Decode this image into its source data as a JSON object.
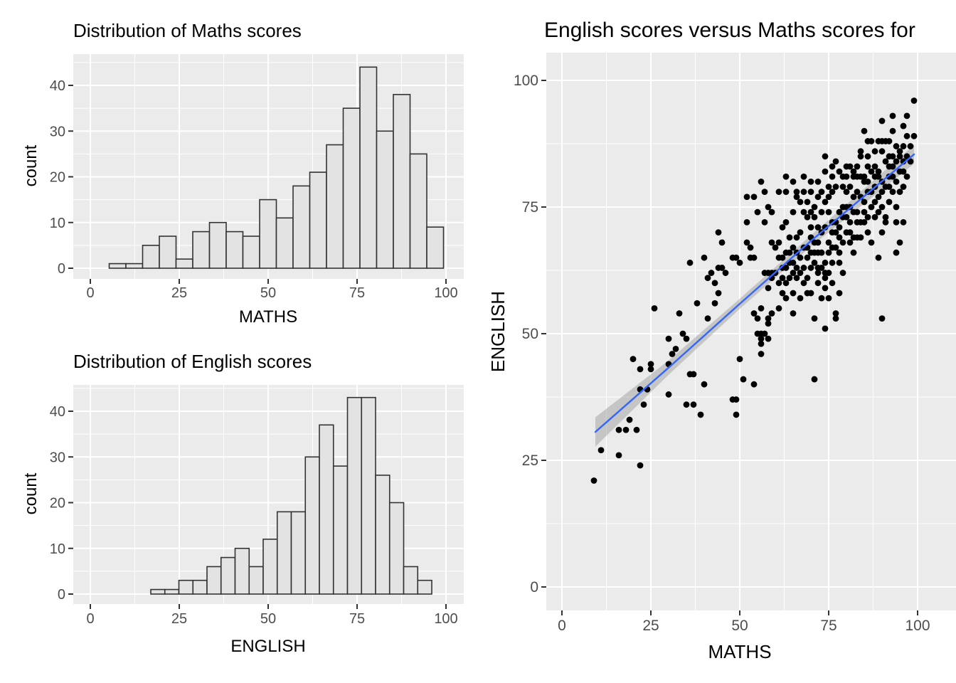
{
  "colors": {
    "panel_bg": "#EBEBEB",
    "grid": "#FFFFFF",
    "bar_fill": "#E3E3E3",
    "bar_stroke": "#333333",
    "point": "#000000",
    "smooth_line": "#3366FF",
    "smooth_band": "rgba(150,150,150,0.45)",
    "tick_label": "#4D4D4D",
    "tick_mark": "#333333",
    "title": "#000000"
  },
  "chart_data": [
    {
      "id": "maths-histogram",
      "type": "bar",
      "title": "Distribution of Maths scores",
      "xlabel": "MATHS",
      "ylabel": "count",
      "x_ticks": [
        0,
        25,
        50,
        75,
        100
      ],
      "y_ticks": [
        0,
        10,
        20,
        30,
        40
      ],
      "xlim": [
        -5,
        105
      ],
      "ylim": [
        -2,
        46
      ],
      "grid": "on",
      "bin_start": 5.3,
      "bin_width": 4.7,
      "values": [
        1,
        1,
        5,
        7,
        2,
        8,
        10,
        8,
        7,
        15,
        11,
        18,
        21,
        27,
        35,
        44,
        30,
        38,
        25,
        9
      ]
    },
    {
      "id": "english-histogram",
      "type": "bar",
      "title": "Distribution of English scores",
      "xlabel": "ENGLISH",
      "ylabel": "count",
      "x_ticks": [
        0,
        25,
        50,
        75,
        100
      ],
      "y_ticks": [
        0,
        10,
        20,
        30,
        40
      ],
      "xlim": [
        -5,
        105
      ],
      "ylim": [
        -2,
        45
      ],
      "grid": "on",
      "bin_start": 17,
      "bin_width": 3.95,
      "values": [
        1,
        1,
        3,
        3,
        6,
        8,
        10,
        6,
        12,
        18,
        18,
        30,
        37,
        28,
        43,
        43,
        26,
        20,
        6,
        3
      ]
    },
    {
      "id": "scatter",
      "type": "scatter",
      "title": "English scores versus Maths scores for",
      "xlabel": "MATHS",
      "ylabel": "ENGLISH",
      "x_ticks": [
        0,
        25,
        50,
        75,
        100
      ],
      "y_ticks": [
        0,
        25,
        50,
        75,
        100
      ],
      "xlim": [
        -4,
        110
      ],
      "ylim": [
        -5,
        105
      ],
      "grid": "on",
      "smooth": {
        "x": [
          9.4,
          30,
          50,
          70,
          99
        ],
        "y": [
          30.6,
          43.3,
          55.9,
          68.3,
          85.4
        ],
        "halfwidth": [
          2.9,
          1.4,
          1.0,
          1.1,
          1.85
        ]
      },
      "points": [
        [
          9,
          21
        ],
        [
          11,
          27
        ],
        [
          16,
          26
        ],
        [
          22,
          24
        ],
        [
          16,
          31
        ],
        [
          18,
          31
        ],
        [
          21,
          31
        ],
        [
          19,
          33
        ],
        [
          23,
          36
        ],
        [
          22,
          39
        ],
        [
          24,
          39
        ],
        [
          25,
          44
        ],
        [
          25,
          43
        ],
        [
          20,
          45
        ],
        [
          22,
          43
        ],
        [
          30,
          38
        ],
        [
          35,
          36
        ],
        [
          37,
          36
        ],
        [
          39,
          34
        ],
        [
          40,
          40
        ],
        [
          36,
          42
        ],
        [
          37,
          42
        ],
        [
          30,
          44
        ],
        [
          31,
          46
        ],
        [
          32,
          47
        ],
        [
          30,
          49
        ],
        [
          34,
          50
        ],
        [
          35,
          49
        ],
        [
          33,
          54
        ],
        [
          38,
          56
        ],
        [
          43,
          56
        ],
        [
          41,
          53
        ],
        [
          26,
          55
        ],
        [
          36,
          64
        ],
        [
          44,
          58
        ],
        [
          43,
          60
        ],
        [
          41,
          61
        ],
        [
          40,
          65
        ],
        [
          42,
          62
        ],
        [
          44,
          63
        ],
        [
          45,
          63
        ],
        [
          46,
          62
        ],
        [
          44,
          70
        ],
        [
          45,
          68
        ],
        [
          48,
          65
        ],
        [
          49,
          65
        ],
        [
          50,
          64
        ],
        [
          48,
          37
        ],
        [
          49,
          34
        ],
        [
          49,
          37
        ],
        [
          50,
          45
        ],
        [
          51,
          41
        ],
        [
          54,
          40
        ],
        [
          56,
          50
        ],
        [
          57,
          50
        ],
        [
          56,
          48
        ],
        [
          56,
          46
        ],
        [
          55,
          53
        ],
        [
          58,
          53
        ],
        [
          54,
          54
        ],
        [
          56,
          55
        ],
        [
          59,
          54
        ],
        [
          58,
          52
        ],
        [
          56,
          49
        ],
        [
          58,
          49
        ],
        [
          52,
          68
        ],
        [
          52,
          72
        ],
        [
          54,
          65
        ],
        [
          53,
          65
        ],
        [
          58,
          62
        ],
        [
          59,
          62
        ],
        [
          58,
          59
        ],
        [
          57,
          62
        ],
        [
          59,
          61
        ],
        [
          55,
          50
        ],
        [
          62,
          61
        ],
        [
          63,
          57
        ],
        [
          65,
          58
        ],
        [
          67,
          57
        ],
        [
          69,
          58
        ],
        [
          73,
          57
        ],
        [
          75,
          57
        ],
        [
          65,
          54
        ],
        [
          71,
          53
        ],
        [
          74,
          51
        ],
        [
          77,
          54
        ],
        [
          78,
          58
        ],
        [
          65,
          64
        ],
        [
          66,
          63
        ],
        [
          70,
          63
        ],
        [
          72,
          63
        ],
        [
          75,
          62
        ],
        [
          78,
          64
        ],
        [
          79,
          62
        ],
        [
          68,
          60
        ],
        [
          72,
          60
        ],
        [
          62,
          65
        ],
        [
          64,
          64
        ],
        [
          69,
          65
        ],
        [
          68,
          63
        ],
        [
          73,
          63
        ],
        [
          74,
          62
        ],
        [
          74,
          61
        ],
        [
          74,
          59
        ],
        [
          63,
          60
        ],
        [
          61,
          55
        ],
        [
          66,
          61
        ],
        [
          70,
          58
        ],
        [
          76,
          60
        ],
        [
          77,
          53
        ],
        [
          90,
          53
        ],
        [
          71,
          41
        ],
        [
          65,
          74
        ],
        [
          66,
          77
        ],
        [
          67,
          76
        ],
        [
          68,
          74
        ],
        [
          69,
          76
        ],
        [
          69,
          73
        ],
        [
          70,
          71
        ],
        [
          70,
          74
        ],
        [
          71,
          75
        ],
        [
          71,
          73
        ],
        [
          71,
          68
        ],
        [
          72,
          68
        ],
        [
          72,
          66
        ],
        [
          73,
          74
        ],
        [
          74,
          71
        ],
        [
          74,
          76
        ],
        [
          75,
          77
        ],
        [
          75,
          74
        ],
        [
          76,
          72
        ],
        [
          76,
          70
        ],
        [
          77,
          67
        ],
        [
          78,
          69
        ],
        [
          78,
          71
        ],
        [
          79,
          73
        ],
        [
          79,
          75
        ],
        [
          60,
          67
        ],
        [
          61,
          65
        ],
        [
          62,
          71
        ],
        [
          63,
          72
        ],
        [
          59,
          74
        ],
        [
          58,
          75
        ],
        [
          54,
          77
        ],
        [
          59,
          68
        ],
        [
          53,
          67
        ],
        [
          57,
          72
        ],
        [
          55,
          74
        ],
        [
          80,
          70
        ],
        [
          81,
          68
        ],
        [
          81,
          72
        ],
        [
          82,
          74
        ],
        [
          82,
          66
        ],
        [
          83,
          69
        ],
        [
          84,
          72
        ],
        [
          85,
          74
        ],
        [
          86,
          70
        ],
        [
          87,
          68
        ],
        [
          88,
          73
        ],
        [
          89,
          65
        ],
        [
          90,
          70
        ],
        [
          91,
          73
        ],
        [
          91,
          72
        ],
        [
          94,
          72
        ],
        [
          95,
          68
        ],
        [
          96,
          72
        ],
        [
          94,
          66
        ],
        [
          52,
          77
        ],
        [
          57,
          78
        ],
        [
          61,
          78
        ],
        [
          63,
          78
        ],
        [
          66,
          78
        ],
        [
          68,
          78
        ],
        [
          70,
          78
        ],
        [
          72,
          77
        ],
        [
          73,
          78
        ],
        [
          75,
          79
        ],
        [
          76,
          78
        ],
        [
          77,
          79
        ],
        [
          79,
          79
        ],
        [
          80,
          78
        ],
        [
          81,
          79
        ],
        [
          83,
          78
        ],
        [
          85,
          80
        ],
        [
          86,
          78
        ],
        [
          88,
          79
        ],
        [
          90,
          78
        ],
        [
          92,
          79
        ],
        [
          95,
          78
        ],
        [
          63,
          81
        ],
        [
          68,
          81
        ],
        [
          70,
          80
        ],
        [
          72,
          80
        ],
        [
          74,
          82
        ],
        [
          76,
          81
        ],
        [
          78,
          82
        ],
        [
          79,
          81
        ],
        [
          80,
          81
        ],
        [
          82,
          81
        ],
        [
          83,
          81
        ],
        [
          84,
          81
        ],
        [
          85,
          81
        ],
        [
          88,
          81
        ],
        [
          89,
          81
        ],
        [
          93,
          81
        ],
        [
          56,
          80
        ],
        [
          74,
          85
        ],
        [
          76,
          83
        ],
        [
          77,
          84
        ],
        [
          80,
          83
        ],
        [
          81,
          83
        ],
        [
          82,
          82
        ],
        [
          83,
          83
        ],
        [
          84,
          85
        ],
        [
          86,
          85
        ],
        [
          86,
          83
        ],
        [
          87,
          82
        ],
        [
          89,
          82
        ],
        [
          92,
          83
        ],
        [
          94,
          84
        ],
        [
          96,
          84
        ],
        [
          65,
          80
        ],
        [
          99,
          96
        ],
        [
          93,
          93
        ],
        [
          97,
          93
        ],
        [
          90,
          92
        ],
        [
          96,
          91
        ],
        [
          93,
          90
        ],
        [
          97,
          89
        ],
        [
          85,
          90
        ],
        [
          87,
          88
        ],
        [
          89,
          88
        ],
        [
          90,
          88
        ],
        [
          91,
          88
        ],
        [
          92,
          88
        ],
        [
          94,
          87
        ],
        [
          96,
          87
        ],
        [
          95,
          86
        ],
        [
          88,
          86
        ],
        [
          90,
          86
        ],
        [
          92,
          85
        ],
        [
          93,
          85
        ],
        [
          86,
          88
        ],
        [
          84,
          86
        ],
        [
          60,
          62
        ],
        [
          61,
          60
        ],
        [
          62,
          58
        ],
        [
          63,
          63
        ],
        [
          64,
          61
        ],
        [
          64,
          66
        ],
        [
          65,
          62
        ],
        [
          66,
          66
        ],
        [
          67,
          62
        ],
        [
          67,
          65
        ],
        [
          68,
          67
        ],
        [
          69,
          61
        ],
        [
          69,
          67
        ],
        [
          70,
          66
        ],
        [
          70,
          69
        ],
        [
          71,
          64
        ],
        [
          71,
          66
        ],
        [
          72,
          62
        ],
        [
          72,
          71
        ],
        [
          73,
          66
        ],
        [
          73,
          70
        ],
        [
          74,
          64
        ],
        [
          75,
          66
        ],
        [
          75,
          68
        ],
        [
          76,
          64
        ],
        [
          76,
          67
        ],
        [
          77,
          70
        ],
        [
          77,
          72
        ],
        [
          78,
          66
        ],
        [
          78,
          74
        ],
        [
          79,
          68
        ],
        [
          80,
          73
        ],
        [
          80,
          75
        ],
        [
          81,
          70
        ],
        [
          81,
          75
        ],
        [
          82,
          69
        ],
        [
          82,
          77
        ],
        [
          83,
          72
        ],
        [
          83,
          74
        ],
        [
          84,
          69
        ],
        [
          84,
          77
        ],
        [
          85,
          72
        ],
        [
          85,
          76
        ],
        [
          86,
          73
        ],
        [
          86,
          80
        ],
        [
          87,
          75
        ],
        [
          87,
          78
        ],
        [
          88,
          76
        ],
        [
          88,
          83
        ],
        [
          89,
          74
        ],
        [
          89,
          77
        ],
        [
          90,
          75
        ],
        [
          90,
          80
        ],
        [
          91,
          79
        ],
        [
          91,
          84
        ],
        [
          92,
          76
        ],
        [
          92,
          81
        ],
        [
          93,
          78
        ],
        [
          93,
          83
        ],
        [
          94,
          75
        ],
        [
          94,
          80
        ],
        [
          95,
          82
        ],
        [
          95,
          85
        ],
        [
          96,
          79
        ],
        [
          96,
          82
        ],
        [
          97,
          85
        ],
        [
          97,
          81
        ],
        [
          98,
          84
        ],
        [
          98,
          87
        ],
        [
          99,
          89
        ],
        [
          67,
          70
        ],
        [
          66,
          69
        ],
        [
          65,
          67
        ],
        [
          64,
          69
        ],
        [
          63,
          66
        ],
        [
          62,
          63
        ],
        [
          61,
          68
        ]
      ]
    }
  ]
}
